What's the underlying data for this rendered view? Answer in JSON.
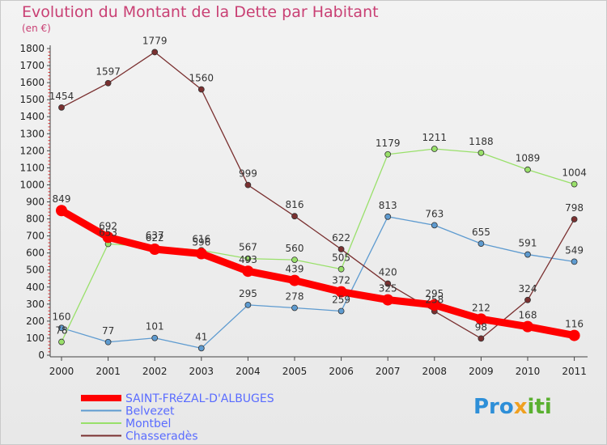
{
  "header": {
    "title": "Evolution du Montant de la Dette par Habitant",
    "subtitle": "(en €)"
  },
  "logo": {
    "part1": "Pro",
    "part2": "x",
    "part3": "iti"
  },
  "chart_data": {
    "type": "line",
    "title": "Evolution du Montant de la Dette par Habitant",
    "subtitle": "(en €)",
    "x": [
      "2000",
      "2001",
      "2002",
      "2003",
      "2004",
      "2005",
      "2006",
      "2007",
      "2008",
      "2009",
      "2010",
      "2011"
    ],
    "ylim": [
      0,
      1800
    ],
    "yticks": [
      0,
      100,
      200,
      300,
      400,
      500,
      600,
      700,
      800,
      900,
      1000,
      1100,
      1200,
      1300,
      1400,
      1500,
      1600,
      1700,
      1800
    ],
    "grid": false,
    "legend_position": "bottom-left",
    "series": [
      {
        "name": "SAINT-FRéZAL-D'ALBUGES",
        "color": "#ff0000",
        "values": [
          849,
          692,
          622,
          596,
          493,
          439,
          372,
          325,
          295,
          212,
          168,
          116
        ]
      },
      {
        "name": "Belvezet",
        "color": "#5e9bd0",
        "values": [
          160,
          77,
          101,
          41,
          295,
          278,
          259,
          813,
          763,
          655,
          591,
          549
        ]
      },
      {
        "name": "Montbel",
        "color": "#99e06a",
        "values": [
          78,
          653,
          637,
          616,
          567,
          560,
          505,
          1179,
          1211,
          1188,
          1089,
          1004
        ]
      },
      {
        "name": "Chasseradès",
        "color": "#7a3030",
        "values": [
          1454,
          1597,
          1779,
          1560,
          999,
          816,
          622,
          420,
          258,
          98,
          324,
          798
        ]
      }
    ]
  }
}
